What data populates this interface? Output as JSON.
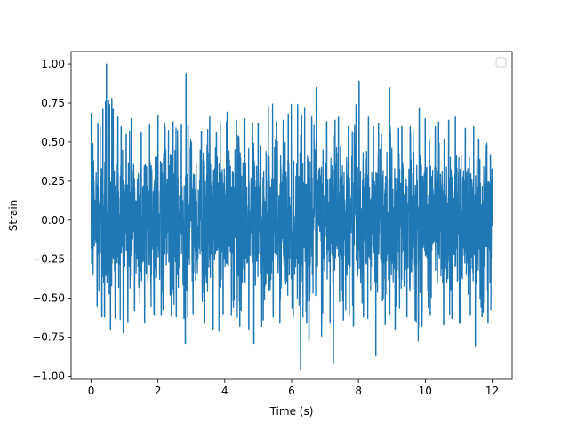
{
  "chart_data": {
    "type": "line",
    "title": "",
    "xlabel": "Time (s)",
    "ylabel": "Strain",
    "xlim": [
      -0.6,
      12.6
    ],
    "ylim": [
      -1.02,
      1.08
    ],
    "xticks": [
      0,
      2,
      4,
      6,
      8,
      10,
      12
    ],
    "xtick_labels": [
      "0",
      "2",
      "4",
      "6",
      "8",
      "10",
      "12"
    ],
    "yticks": [
      -1.0,
      -0.75,
      -0.5,
      -0.25,
      0.0,
      0.25,
      0.5,
      0.75,
      1.0
    ],
    "ytick_labels": [
      "−1.00",
      "−0.75",
      "−0.50",
      "−0.25",
      "0.00",
      "0.25",
      "0.50",
      "0.75",
      "1.00"
    ],
    "grid": false,
    "legend": {
      "location": "upper right",
      "entries": []
    },
    "series": [
      {
        "color": "#1f77b4",
        "x_range": [
          0,
          12
        ],
        "typical_range": [
          -0.45,
          0.45
        ],
        "extremes": [
          {
            "x": 0.05,
            "y": 0.49
          },
          {
            "x": 0.18,
            "y": -0.55
          },
          {
            "x": 0.2,
            "y": 0.62
          },
          {
            "x": 0.27,
            "y": 0.6
          },
          {
            "x": 0.32,
            "y": -0.62
          },
          {
            "x": 0.35,
            "y": 0.71
          },
          {
            "x": 0.4,
            "y": -0.62
          },
          {
            "x": 0.43,
            "y": 0.76
          },
          {
            "x": 0.46,
            "y": 1.0
          },
          {
            "x": 0.52,
            "y": 0.77
          },
          {
            "x": 0.55,
            "y": 0.74
          },
          {
            "x": 0.58,
            "y": -0.7
          },
          {
            "x": 0.62,
            "y": 0.78
          },
          {
            "x": 0.66,
            "y": 0.71
          },
          {
            "x": 0.72,
            "y": -0.63
          },
          {
            "x": 0.8,
            "y": 0.66
          },
          {
            "x": 0.9,
            "y": 0.6
          },
          {
            "x": 0.96,
            "y": -0.72
          },
          {
            "x": 1.05,
            "y": 0.55
          },
          {
            "x": 1.1,
            "y": -0.65
          },
          {
            "x": 1.2,
            "y": 0.65
          },
          {
            "x": 1.3,
            "y": -0.58
          },
          {
            "x": 1.5,
            "y": 0.56
          },
          {
            "x": 1.6,
            "y": -0.66
          },
          {
            "x": 1.75,
            "y": 0.61
          },
          {
            "x": 1.88,
            "y": -0.6
          },
          {
            "x": 2.0,
            "y": 0.67
          },
          {
            "x": 2.1,
            "y": -0.61
          },
          {
            "x": 2.2,
            "y": 0.62
          },
          {
            "x": 2.45,
            "y": 0.63
          },
          {
            "x": 2.55,
            "y": -0.62
          },
          {
            "x": 2.7,
            "y": 0.61
          },
          {
            "x": 2.78,
            "y": -0.63
          },
          {
            "x": 2.82,
            "y": -0.79
          },
          {
            "x": 2.84,
            "y": 0.94
          },
          {
            "x": 2.9,
            "y": 0.61
          },
          {
            "x": 3.05,
            "y": -0.6
          },
          {
            "x": 3.3,
            "y": 0.57
          },
          {
            "x": 3.4,
            "y": -0.66
          },
          {
            "x": 3.55,
            "y": 0.66
          },
          {
            "x": 3.65,
            "y": -0.7
          },
          {
            "x": 3.75,
            "y": 0.56
          },
          {
            "x": 3.95,
            "y": -0.6
          },
          {
            "x": 4.05,
            "y": 0.63
          },
          {
            "x": 4.2,
            "y": -0.61
          },
          {
            "x": 4.35,
            "y": 0.64
          },
          {
            "x": 4.45,
            "y": -0.68
          },
          {
            "x": 4.6,
            "y": 0.65
          },
          {
            "x": 4.72,
            "y": -0.7
          },
          {
            "x": 4.83,
            "y": 0.62
          },
          {
            "x": 4.87,
            "y": -0.79
          },
          {
            "x": 5.0,
            "y": 0.62
          },
          {
            "x": 5.15,
            "y": -0.64
          },
          {
            "x": 5.3,
            "y": 0.73
          },
          {
            "x": 5.45,
            "y": -0.62
          },
          {
            "x": 5.55,
            "y": 0.63
          },
          {
            "x": 5.65,
            "y": -0.66
          },
          {
            "x": 5.75,
            "y": 0.64
          },
          {
            "x": 5.9,
            "y": 0.68
          },
          {
            "x": 6.05,
            "y": -0.62
          },
          {
            "x": 6.18,
            "y": 0.74
          },
          {
            "x": 6.3,
            "y": 0.67
          },
          {
            "x": 6.45,
            "y": -0.66
          },
          {
            "x": 6.52,
            "y": -0.77
          },
          {
            "x": 6.6,
            "y": 0.66
          },
          {
            "x": 6.74,
            "y": 0.85
          },
          {
            "x": 6.9,
            "y": -0.65
          },
          {
            "x": 7.05,
            "y": 0.63
          },
          {
            "x": 7.15,
            "y": -0.66
          },
          {
            "x": 7.25,
            "y": -0.92
          },
          {
            "x": 7.3,
            "y": 0.64
          },
          {
            "x": 7.4,
            "y": 0.66
          },
          {
            "x": 7.55,
            "y": -0.64
          },
          {
            "x": 7.7,
            "y": 0.6
          },
          {
            "x": 7.85,
            "y": -0.68
          },
          {
            "x": 7.93,
            "y": 0.74
          },
          {
            "x": 8.02,
            "y": 0.89
          },
          {
            "x": 8.15,
            "y": -0.62
          },
          {
            "x": 8.3,
            "y": 0.66
          },
          {
            "x": 8.45,
            "y": 0.6
          },
          {
            "x": 8.52,
            "y": -0.87
          },
          {
            "x": 8.6,
            "y": 0.62
          },
          {
            "x": 8.8,
            "y": -0.67
          },
          {
            "x": 8.95,
            "y": 0.6
          },
          {
            "x": 9.1,
            "y": -0.7
          },
          {
            "x": 9.2,
            "y": 0.59
          },
          {
            "x": 9.3,
            "y": 0.6
          },
          {
            "x": 9.45,
            "y": -0.62
          },
          {
            "x": 9.55,
            "y": 0.6
          },
          {
            "x": 9.7,
            "y": -0.64
          },
          {
            "x": 9.82,
            "y": 0.72
          },
          {
            "x": 9.9,
            "y": -0.68
          },
          {
            "x": 10.0,
            "y": 0.65
          },
          {
            "x": 10.15,
            "y": -0.61
          },
          {
            "x": 10.3,
            "y": 0.6
          },
          {
            "x": 10.4,
            "y": 0.63
          },
          {
            "x": 10.55,
            "y": -0.67
          },
          {
            "x": 10.7,
            "y": 0.64
          },
          {
            "x": 10.8,
            "y": -0.63
          },
          {
            "x": 10.9,
            "y": 0.66
          },
          {
            "x": 11.05,
            "y": -0.66
          },
          {
            "x": 11.2,
            "y": 0.59
          },
          {
            "x": 11.35,
            "y": -0.61
          },
          {
            "x": 11.45,
            "y": 0.6
          },
          {
            "x": 11.5,
            "y": -0.81
          },
          {
            "x": 11.6,
            "y": 0.52
          },
          {
            "x": 11.7,
            "y": -0.62
          },
          {
            "x": 11.8,
            "y": 0.48
          },
          {
            "x": 11.88,
            "y": -0.66
          },
          {
            "x": 11.95,
            "y": 0.42
          },
          {
            "x": 12.0,
            "y": 0.33
          }
        ]
      }
    ]
  }
}
